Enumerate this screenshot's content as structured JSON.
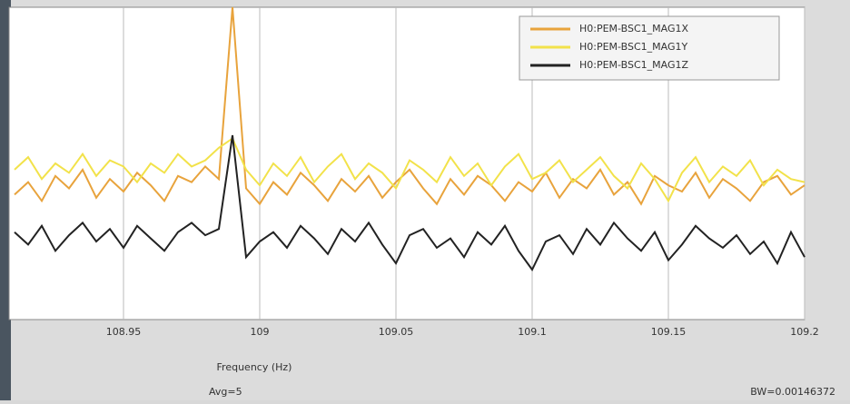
{
  "chart_data": {
    "type": "line",
    "xlabel": "Frequency (Hz)",
    "notes": [
      "Avg=5",
      "BW=0.00146372"
    ],
    "x": [
      108.91,
      108.915,
      108.92,
      108.925,
      108.93,
      108.935,
      108.94,
      108.945,
      108.95,
      108.955,
      108.96,
      108.965,
      108.97,
      108.975,
      108.98,
      108.985,
      108.99,
      108.995,
      109,
      109.005,
      109.01,
      109.015,
      109.02,
      109.025,
      109.03,
      109.035,
      109.04,
      109.045,
      109.05,
      109.055,
      109.06,
      109.065,
      109.07,
      109.075,
      109.08,
      109.085,
      109.09,
      109.095,
      109.1,
      109.105,
      109.11,
      109.115,
      109.12,
      109.125,
      109.13,
      109.135,
      109.14,
      109.145,
      109.15,
      109.155,
      109.16,
      109.165,
      109.17,
      109.175,
      109.18,
      109.185,
      109.19,
      109.195,
      109.2
    ],
    "series": [
      {
        "name": "H0:PEM-BSC1_MAG1X",
        "color": "#e8a33c",
        "values": [
          40,
          44,
          38,
          46,
          42,
          48,
          39,
          45,
          41,
          47,
          43,
          38,
          46,
          44,
          49,
          45,
          100,
          42,
          37,
          44,
          40,
          47,
          43,
          38,
          45,
          41,
          46,
          39,
          44,
          48,
          42,
          37,
          45,
          40,
          46,
          43,
          38,
          44,
          41,
          47,
          39,
          45,
          42,
          48,
          40,
          44,
          37,
          46,
          43,
          41,
          47,
          39,
          45,
          42,
          38,
          44,
          46,
          40,
          43
        ]
      },
      {
        "name": "H0:PEM-BSC1_MAG1Y",
        "color": "#f2e24a",
        "values": [
          48,
          52,
          45,
          50,
          47,
          53,
          46,
          51,
          49,
          44,
          50,
          47,
          53,
          49,
          51,
          55,
          58,
          48,
          43,
          50,
          46,
          52,
          44,
          49,
          53,
          45,
          50,
          47,
          42,
          51,
          48,
          44,
          52,
          46,
          50,
          43,
          49,
          53,
          45,
          47,
          51,
          44,
          48,
          52,
          46,
          42,
          50,
          45,
          38,
          47,
          52,
          44,
          49,
          46,
          51,
          43,
          48,
          45,
          44
        ]
      },
      {
        "name": "H0:PEM-BSC1_MAG1Z",
        "color": "#222222",
        "values": [
          28,
          24,
          30,
          22,
          27,
          31,
          25,
          29,
          23,
          30,
          26,
          22,
          28,
          31,
          27,
          29,
          59,
          20,
          25,
          28,
          23,
          30,
          26,
          21,
          29,
          25,
          31,
          24,
          18,
          27,
          29,
          23,
          26,
          20,
          28,
          24,
          30,
          22,
          16,
          25,
          27,
          21,
          29,
          24,
          31,
          26,
          22,
          28,
          19,
          24,
          30,
          26,
          23,
          27,
          21,
          25,
          18,
          28,
          20
        ]
      }
    ],
    "xlim": [
      108.908,
      109.2
    ],
    "ylim": [
      0,
      100
    ],
    "xticks": [
      108.95,
      109,
      109.05,
      109.1,
      109.15,
      109.2
    ],
    "grid": true,
    "legend": "top-right"
  }
}
